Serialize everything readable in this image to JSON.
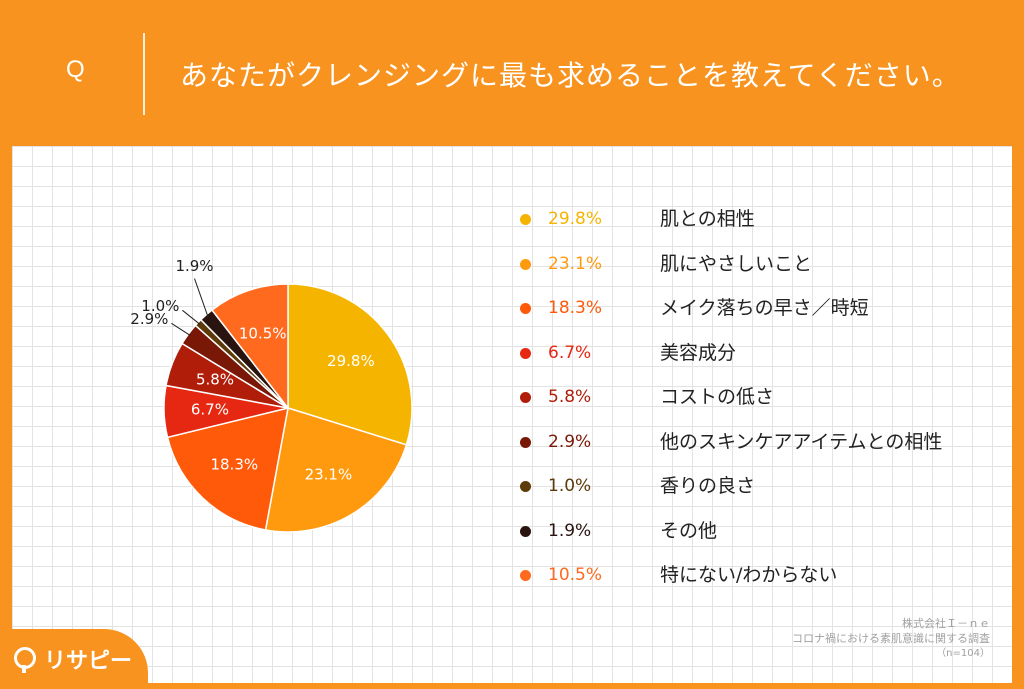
{
  "header": {
    "q_mark": "Q",
    "question": "あなたがクレンジングに最も求めることを教えてください。"
  },
  "chart_data": {
    "type": "pie",
    "categories": [
      "肌との相性",
      "肌にやさしいこと",
      "メイク落ちの早さ／時短",
      "美容成分",
      "コストの低さ",
      "他のスキンケアアイテムとの相性",
      "香りの良さ",
      "その他",
      "特にない/わからない"
    ],
    "values": [
      29.8,
      23.1,
      18.3,
      6.7,
      5.8,
      2.9,
      1.0,
      1.9,
      10.5
    ],
    "value_labels": [
      "29.8%",
      "23.1%",
      "18.3%",
      "6.7%",
      "5.8%",
      "2.9%",
      "1.0%",
      "1.9%",
      "10.5%"
    ],
    "colors": [
      "#F5B400",
      "#FF9A0F",
      "#FF5A0A",
      "#E62812",
      "#B01E0A",
      "#7A1808",
      "#5C3A0A",
      "#2A1410",
      "#FF6A1F"
    ],
    "legend_placement": "right"
  },
  "footer": {
    "company": "株式会社Ｉ－ｎｅ",
    "survey": "コロナ禍における素肌意識に関する調査",
    "sample": "（n=104）"
  },
  "logo": {
    "text": "リサピー"
  }
}
